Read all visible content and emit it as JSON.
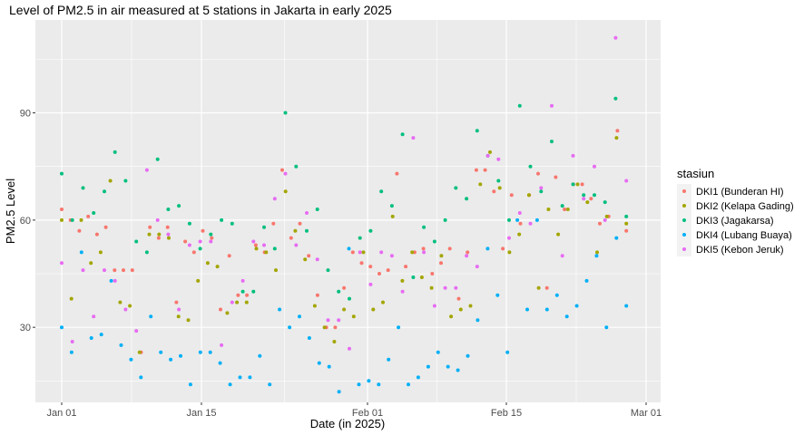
{
  "chart_data": {
    "type": "scatter",
    "title": "Level of PM2.5 in air measured at 5 stations in Jakarta in early 2025",
    "xlabel": "Date (in 2025)",
    "ylabel": "PM2.5 Level",
    "x_ticks": [
      "Jan 01",
      "Jan 15",
      "Feb 01",
      "Feb 15",
      "Mar 01"
    ],
    "y_ticks": [
      30,
      60,
      90
    ],
    "ylim": [
      9,
      116
    ],
    "grid": true,
    "legend_title": "stasiun",
    "legend_position": "right",
    "series": [
      {
        "name": "DKI1 (Bunderan HI)",
        "color": "#F8766D",
        "values": [
          63,
          60,
          57,
          61,
          56,
          58,
          46,
          46,
          46,
          23,
          58,
          55,
          58,
          37,
          54,
          51,
          57,
          55,
          35,
          50,
          39,
          39,
          53,
          51,
          59,
          74,
          55,
          59,
          50,
          39,
          30,
          30,
          41,
          51,
          48,
          47,
          45,
          46,
          73,
          47,
          51,
          52,
          45,
          48,
          52,
          38,
          51,
          74,
          74,
          68,
          52,
          67,
          59,
          67,
          73,
          41,
          72,
          63,
          70,
          70,
          66,
          59,
          61,
          85,
          57
        ]
      },
      {
        "name": "DKI2 (Kelapa Gading)",
        "color": "#A3A500",
        "values": [
          60,
          38,
          60,
          48,
          51,
          71,
          37,
          36,
          23,
          56,
          56,
          55,
          33,
          32,
          43,
          48,
          47,
          34,
          37,
          37,
          52,
          51,
          46,
          68,
          57,
          49,
          36,
          30,
          26,
          35,
          33,
          51,
          35,
          37,
          61,
          43,
          51,
          44,
          41,
          50,
          33,
          35,
          36,
          70,
          79,
          69,
          51,
          56,
          67,
          41,
          63,
          56,
          63,
          70,
          65,
          51,
          61,
          83,
          59
        ]
      },
      {
        "name": "DKI3 (Jagakarsa)",
        "color": "#00BF7D",
        "values": [
          73,
          60,
          69,
          62,
          68,
          79,
          71,
          54,
          51,
          77,
          63,
          64,
          59,
          52,
          56,
          60,
          59,
          40,
          40,
          58,
          52,
          90,
          75,
          57,
          63,
          46,
          40,
          38,
          55,
          57,
          68,
          64,
          84,
          44,
          58,
          54,
          60,
          69,
          66,
          85,
          78,
          71,
          60,
          92,
          75,
          68,
          82,
          64,
          70,
          67,
          67,
          65,
          94,
          61
        ]
      },
      {
        "name": "DKI4 (Lubang Buaya)",
        "color": "#00B0F6",
        "values": [
          30,
          23,
          51,
          27,
          28,
          43,
          25,
          21,
          16,
          33,
          23,
          21,
          22,
          14,
          23,
          23,
          20,
          14,
          16,
          16,
          22,
          14,
          35,
          30,
          33,
          27,
          20,
          19,
          12,
          52,
          14,
          15,
          14,
          21,
          30,
          14,
          16,
          19,
          23,
          19,
          18,
          22,
          32,
          52,
          39,
          23,
          60,
          35,
          60,
          35,
          39,
          33,
          36,
          43,
          50,
          30,
          55,
          36
        ]
      },
      {
        "name": "DKI5 (Kebon Jeruk)",
        "color": "#E76BF3",
        "values": [
          48,
          26,
          46,
          33,
          46,
          43,
          35,
          29,
          74,
          60,
          56,
          35,
          53,
          54,
          54,
          25,
          37,
          43,
          54,
          53,
          66,
          73,
          53,
          62,
          49,
          32,
          32,
          24,
          51,
          42,
          51,
          50,
          40,
          83,
          51,
          36,
          41,
          41,
          50,
          47,
          78,
          77,
          55,
          62,
          59,
          69,
          92,
          50,
          78,
          66,
          75,
          60,
          111,
          71
        ]
      }
    ]
  }
}
